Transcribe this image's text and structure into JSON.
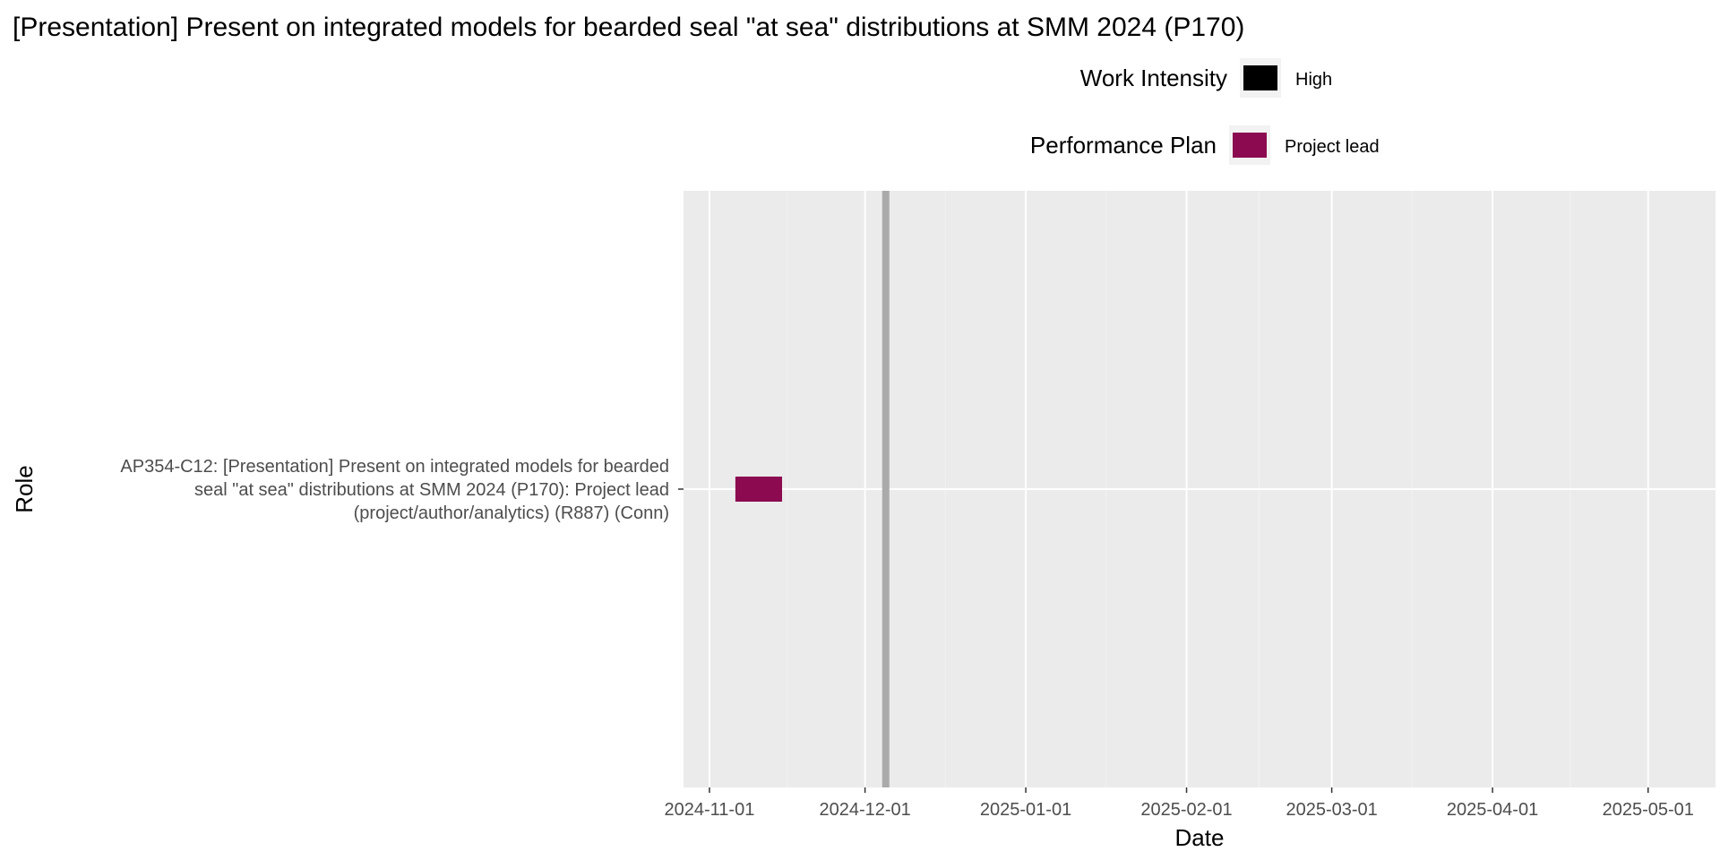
{
  "chart_data": {
    "type": "gantt",
    "title": "[Presentation] Present on integrated models for bearded seal \"at sea\" distributions at SMM 2024 (P170)",
    "xlabel": "Date",
    "ylabel": "Role",
    "x_ticks": [
      "2024-11-01",
      "2024-12-01",
      "2025-01-01",
      "2025-02-01",
      "2025-03-01",
      "2025-04-01",
      "2025-05-01"
    ],
    "x_range": [
      "2024-10-27",
      "2025-05-14"
    ],
    "grid": true,
    "legend_position": "top-right",
    "legends": [
      {
        "title": "Work Intensity",
        "items": [
          {
            "label": "High",
            "color": "#000000"
          }
        ]
      },
      {
        "title": "Performance Plan",
        "items": [
          {
            "label": "Project lead",
            "color": "#8b0a50"
          }
        ]
      }
    ],
    "categories": [
      {
        "label": "AP354-C12: [Presentation] Present on integrated models for bearded seal \"at sea\" distributions at SMM 2024 (P170): Project lead (project/author/analytics) (R887) (Conn)",
        "label_lines": [
          "AP354-C12: [Presentation] Present on integrated models for bearded",
          "seal \"at sea\" distributions at SMM 2024 (P170): Project lead",
          "(project/author/analytics) (R887) (Conn)"
        ]
      }
    ],
    "bars": [
      {
        "category_index": 0,
        "start": "2024-11-06",
        "end": "2024-11-15",
        "plan": "Project lead",
        "color": "#8b0a50"
      }
    ],
    "today_line": {
      "date": "2024-12-05",
      "color": "#aaaaaa"
    }
  }
}
